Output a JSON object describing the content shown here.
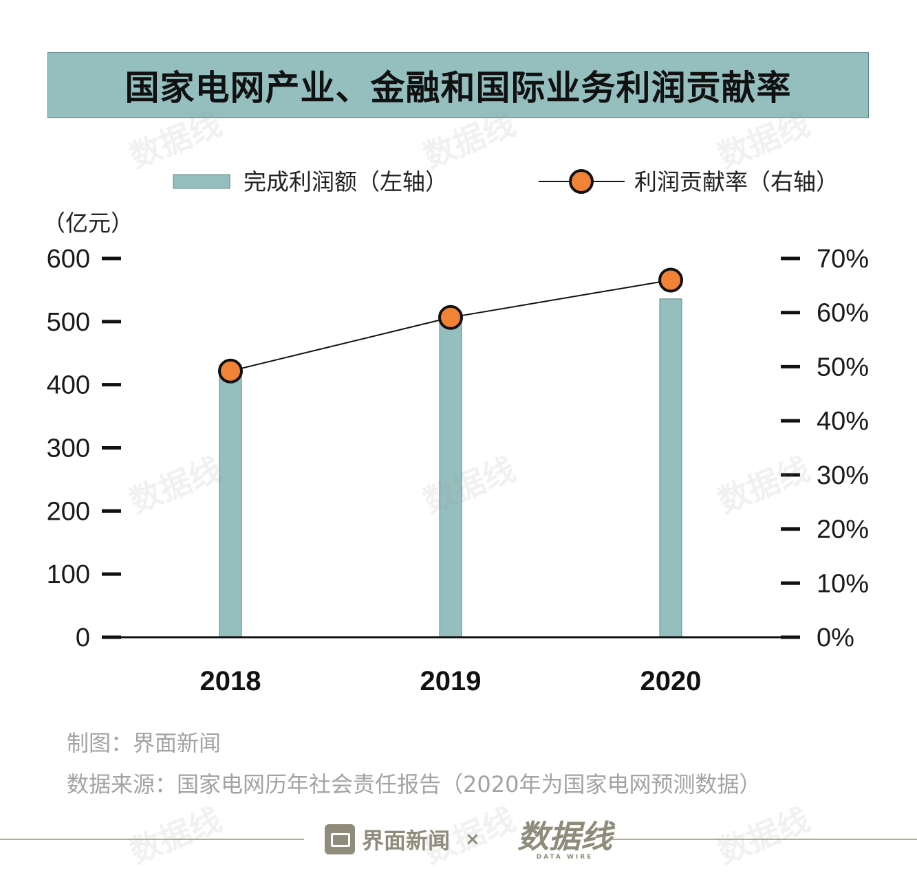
{
  "title": "国家电网产业、金融和国际业务利润贡献率",
  "colors": {
    "bar": "#95bfbf",
    "bar_edge": "#5e8686",
    "marker": "#f08336",
    "line": "#111111",
    "title_bg": "#95bfbf",
    "muted": "#a3a3a3",
    "brand": "#8f8c7b"
  },
  "chart_data": {
    "type": "bar+line",
    "title": "国家电网产业、金融和国际业务利润贡献率",
    "categories": [
      "2018",
      "2019",
      "2020"
    ],
    "series": [
      {
        "name": "完成利润额（左轴）",
        "type": "bar",
        "axis": "left",
        "values": [
          418,
          505,
          536
        ]
      },
      {
        "name": "利润贡献率（右轴）",
        "type": "line",
        "axis": "right",
        "values": [
          49.2,
          59.1,
          66.0
        ]
      }
    ],
    "left_axis": {
      "unit": "（亿元）",
      "ylim": [
        0,
        600
      ],
      "ticks": [
        "0",
        "100",
        "200",
        "300",
        "400",
        "500",
        "600"
      ]
    },
    "right_axis": {
      "ylim": [
        0,
        70
      ],
      "ticks": [
        "0%",
        "10%",
        "20%",
        "30%",
        "40%",
        "50%",
        "60%",
        "70%"
      ]
    },
    "legend": {
      "placement": "top",
      "bar_label": "完成利润额（左轴）",
      "line_label": "利润贡献率（右轴）"
    }
  },
  "credits": {
    "maker": "制图：界面新闻",
    "source": "数据来源：国家电网历年社会责任报告（2020年为国家电网预测数据）"
  },
  "footer": {
    "brand": "界面新闻",
    "times": "×",
    "logo": "数据线",
    "logo_sub": "DATA WIRE"
  },
  "watermark": "数据线"
}
